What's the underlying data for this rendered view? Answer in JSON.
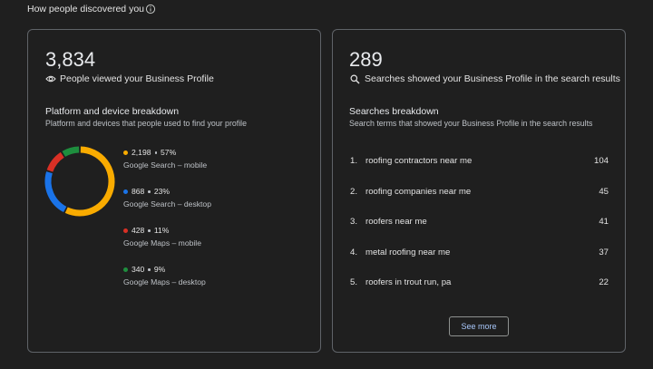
{
  "header": {
    "title": "How people discovered you"
  },
  "views_card": {
    "total": "3,834",
    "total_caption": "People viewed your Business Profile",
    "breakdown": {
      "title": "Platform and device breakdown",
      "subtitle": "Platform and devices that people used to find your profile",
      "items": [
        {
          "name": "Google Search – mobile",
          "value": 2198,
          "value_label": "2,198",
          "percent": {
            "value": 57,
            "label": "57%"
          },
          "color": "#f9ab00"
        },
        {
          "name": "Google Search – desktop",
          "value": 868,
          "value_label": "868",
          "percent": {
            "value": 23,
            "label": "23%"
          },
          "color": "#1a73e8"
        },
        {
          "name": "Google Maps – mobile",
          "value": 428,
          "value_label": "428",
          "percent": {
            "value": 11,
            "label": "11%"
          },
          "color": "#d93025"
        },
        {
          "name": "Google Maps – desktop",
          "value": 340,
          "value_label": "340",
          "percent": {
            "value": 9,
            "label": "9%"
          },
          "color": "#1e8e3e"
        }
      ]
    }
  },
  "searches_card": {
    "total": "289",
    "total_caption": "Searches showed your Business Profile in the search results",
    "breakdown": {
      "title": "Searches breakdown",
      "subtitle": "Search terms that showed your Business Profile in the search results",
      "items": [
        {
          "rank": "1.",
          "term": "roofing contractors near me",
          "count": 104
        },
        {
          "rank": "2.",
          "term": "roofing companies near me",
          "count": 45
        },
        {
          "rank": "3.",
          "term": "roofers near me",
          "count": 41
        },
        {
          "rank": "4.",
          "term": "metal roofing near me",
          "count": 37
        },
        {
          "rank": "5.",
          "term": "roofers in trout run, pa",
          "count": 22
        }
      ]
    },
    "button": "See more"
  }
}
